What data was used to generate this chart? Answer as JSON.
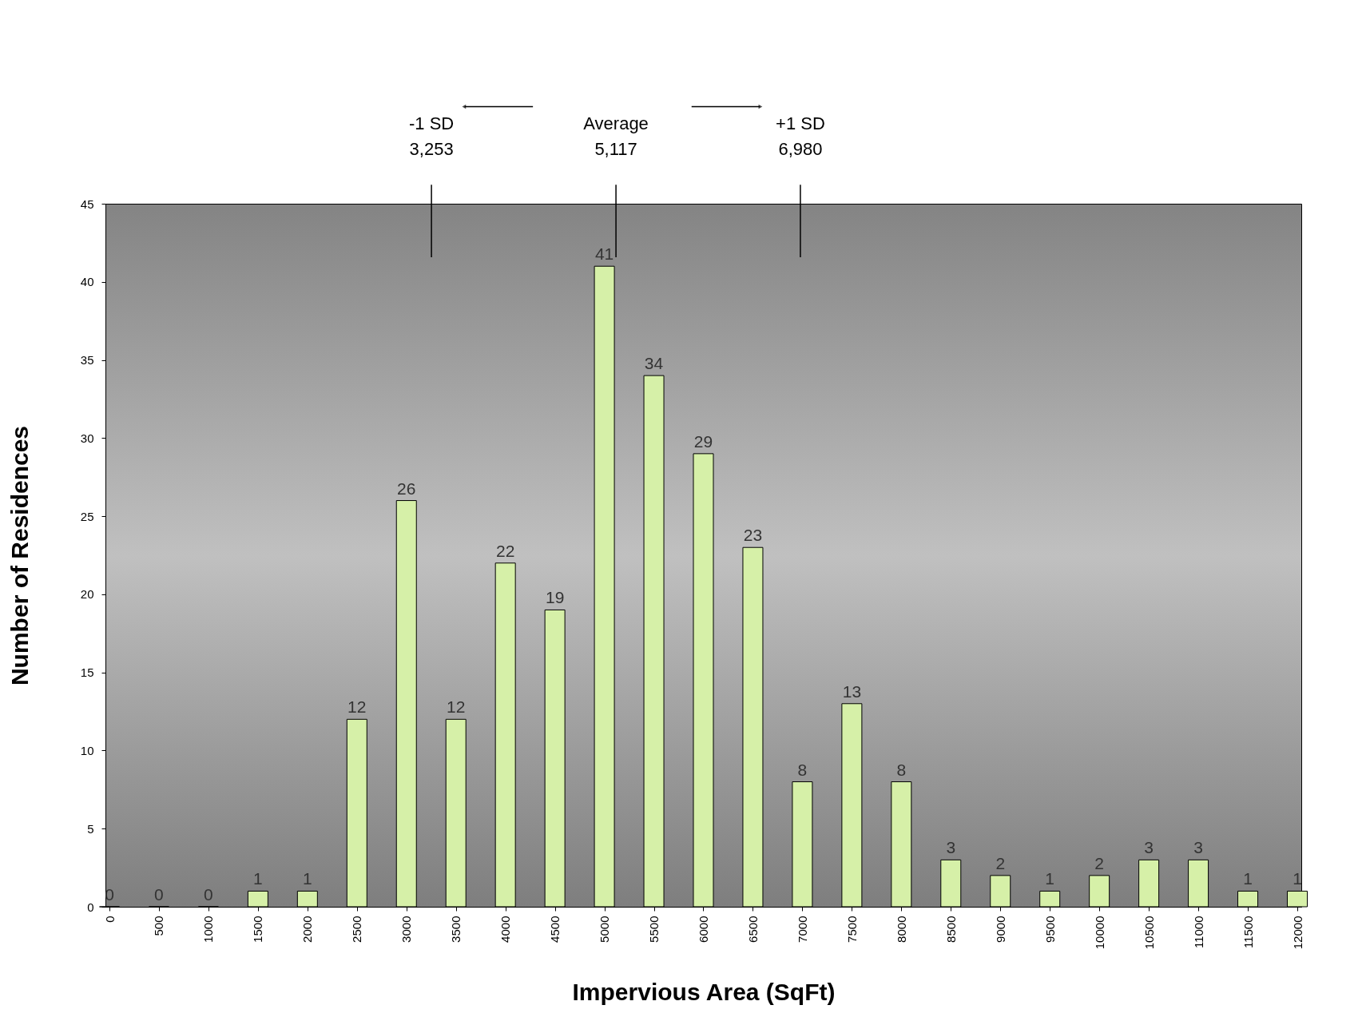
{
  "chart_data": {
    "type": "bar",
    "xlabel": "Impervious Area (SqFt)",
    "ylabel": "Number of Residences",
    "x": [
      0,
      500,
      1000,
      1500,
      2000,
      2500,
      3000,
      3500,
      4000,
      4500,
      5000,
      5500,
      6000,
      6500,
      7000,
      7500,
      8000,
      8500,
      9000,
      9500,
      10000,
      10500,
      11000,
      11500,
      12000
    ],
    "values": [
      0,
      0,
      0,
      1,
      1,
      12,
      26,
      12,
      22,
      19,
      41,
      34,
      29,
      23,
      8,
      13,
      8,
      3,
      2,
      1,
      2,
      3,
      3,
      1,
      1
    ],
    "color": "#d6f0a8",
    "data_labels": true,
    "xlim": [
      0,
      12000
    ],
    "xticks": [
      0,
      500,
      1000,
      1500,
      2000,
      2500,
      3000,
      3500,
      4000,
      4500,
      5000,
      5500,
      6000,
      6500,
      7000,
      7500,
      8000,
      8500,
      9000,
      9500,
      10000,
      10500,
      11000,
      11500,
      12000
    ],
    "ylim": [
      0,
      45
    ],
    "yticks": [
      0,
      5,
      10,
      15,
      20,
      25,
      30,
      35,
      40,
      45
    ],
    "grid": false,
    "ref_lines": [
      {
        "axis": "x",
        "value": 3253,
        "label": "-1 SD\n3,253"
      },
      {
        "axis": "x",
        "value": 5117,
        "label": "Average\n5,117"
      },
      {
        "axis": "x",
        "value": 6980,
        "label": "+1 SD\n6,980"
      }
    ]
  }
}
